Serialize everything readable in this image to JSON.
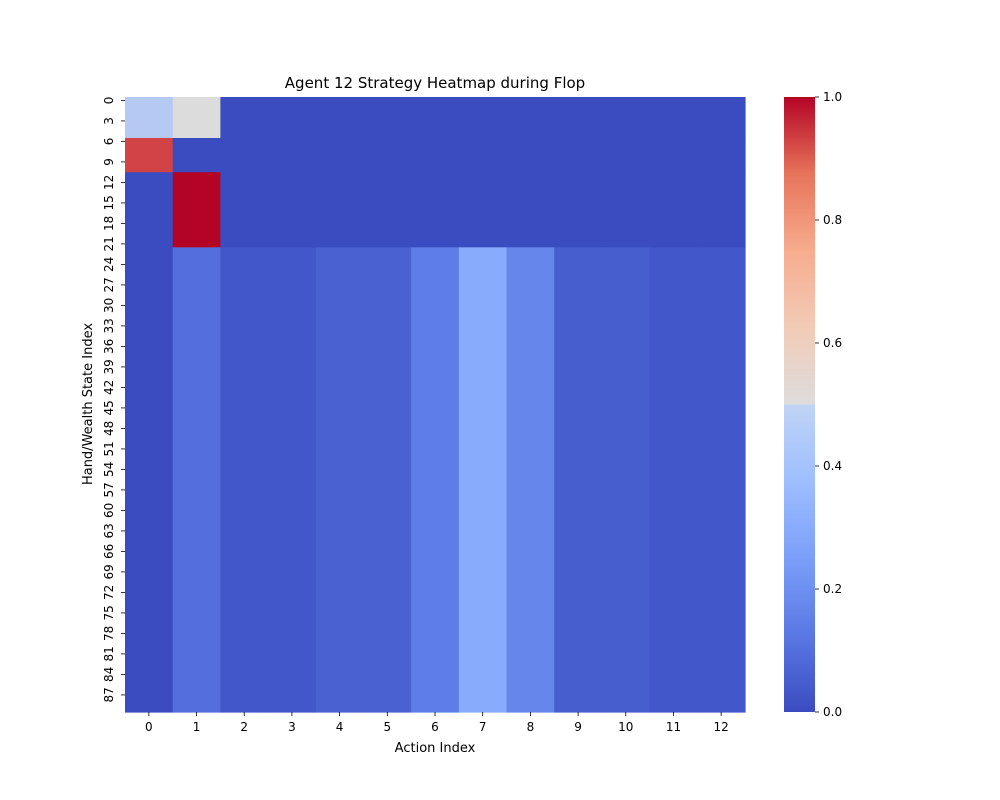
{
  "chart_data": {
    "type": "heatmap",
    "title": "Agent 12 Strategy Heatmap during Flop",
    "xlabel": "Action Index",
    "ylabel": "Hand/Wealth State Index",
    "x_categories": [
      "0",
      "1",
      "2",
      "3",
      "4",
      "5",
      "6",
      "7",
      "8",
      "9",
      "10",
      "11",
      "12"
    ],
    "y_tick_labels": [
      "0",
      "3",
      "6",
      "9",
      "12",
      "15",
      "18",
      "21",
      "24",
      "27",
      "30",
      "33",
      "36",
      "39",
      "42",
      "45",
      "48",
      "51",
      "54",
      "57",
      "60",
      "63",
      "66",
      "69",
      "72",
      "75",
      "78",
      "81",
      "84",
      "87"
    ],
    "n_rows": 90,
    "row_groups": [
      {
        "rows": [
          0,
          5
        ],
        "values": [
          0.42,
          0.5,
          0,
          0,
          0,
          0,
          0,
          0,
          0,
          0,
          0,
          0,
          0
        ]
      },
      {
        "rows": [
          6,
          10
        ],
        "values": [
          0.93,
          0,
          0,
          0,
          0,
          0,
          0,
          0,
          0,
          0,
          0,
          0,
          0
        ]
      },
      {
        "rows": [
          11,
          21
        ],
        "values": [
          0,
          1.0,
          0,
          0,
          0,
          0,
          0,
          0,
          0,
          0,
          0,
          0,
          0
        ]
      },
      {
        "rows": [
          22,
          89
        ],
        "values": [
          0,
          0.1,
          0.03,
          0.03,
          0.06,
          0.06,
          0.14,
          0.3,
          0.17,
          0.05,
          0.05,
          0.03,
          0.03
        ]
      }
    ],
    "colorbar": {
      "min": 0.0,
      "max": 1.0,
      "ticks": [
        "0.0",
        "0.2",
        "0.4",
        "0.6",
        "0.8",
        "1.0"
      ],
      "colormap": "coolwarm"
    }
  }
}
